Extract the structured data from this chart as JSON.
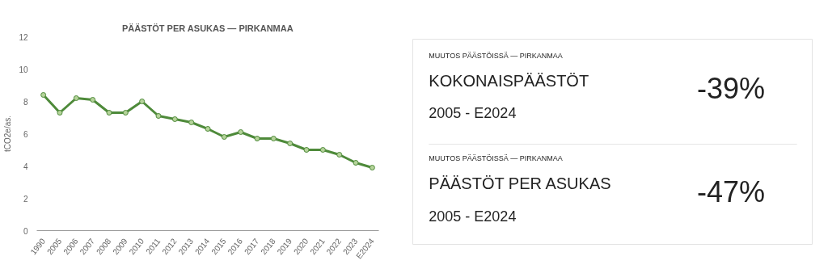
{
  "chart_data": [
    {
      "type": "line",
      "title": "PÄÄSTÖT PER ASUKAS — PIRKANMAA",
      "ylabel": "tCO2e/as.",
      "categories": [
        "1990",
        "2005",
        "2006",
        "2007",
        "2008",
        "2009",
        "2010",
        "2011",
        "2012",
        "2013",
        "2014",
        "2015",
        "2016",
        "2017",
        "2018",
        "2019",
        "2020",
        "2021",
        "2022",
        "2023",
        "E2024"
      ],
      "series": [
        {
          "color": "#4e8a3a",
          "values": [
            8.4,
            7.3,
            8.2,
            8.1,
            7.3,
            7.3,
            8.0,
            7.1,
            6.9,
            6.7,
            6.3,
            5.8,
            6.1,
            5.7,
            5.7,
            5.4,
            5.0,
            5.0,
            4.7,
            4.2,
            3.9
          ]
        }
      ],
      "ylim": [
        0,
        12
      ],
      "yticks": [
        0,
        2,
        4,
        6,
        8,
        10,
        12
      ],
      "grid": false,
      "marker": "circle",
      "line_style": "solid"
    },
    {
      "type": "other",
      "annotations": [
        "MUUTOS PÄÄSTÖISSÄ — PIRKANMAA",
        "KOKONAISPÄÄSTÖT",
        "2005 - E2024",
        "-39%",
        "MUUTOS PÄÄSTÖISSÄ — PIRKANMAA",
        "PÄÄSTÖT PER ASUKAS",
        "2005 - E2024",
        "-47%"
      ]
    }
  ]
}
